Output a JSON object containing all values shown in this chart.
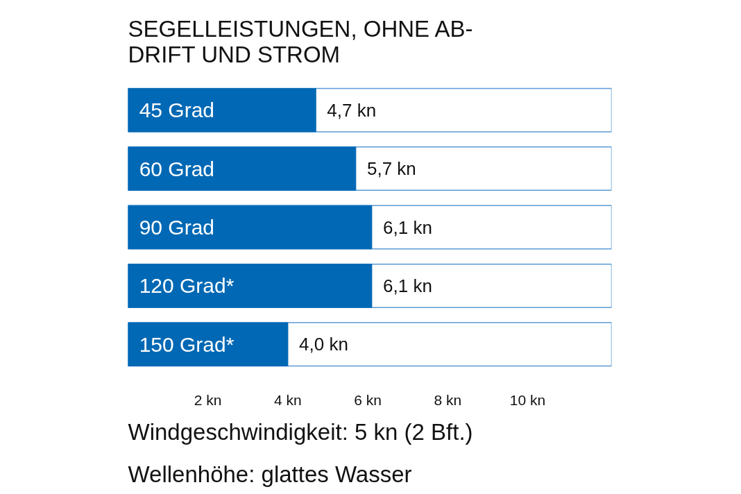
{
  "chart_data": {
    "type": "bar",
    "orientation": "horizontal",
    "title": "SEGELLEISTUNGEN, OHNE AB-\nDRIFT UND STROM",
    "categories": [
      "45 Grad",
      "60 Grad",
      "90 Grad",
      "120 Grad*",
      "150 Grad*"
    ],
    "values": [
      4.7,
      5.7,
      6.1,
      6.1,
      4.0
    ],
    "value_labels": [
      "4,7 kn",
      "5,7 kn",
      "6,1 kn",
      "6,1 kn",
      "4,0 kn"
    ],
    "color": "#0068b4",
    "xlim": [
      0,
      12.1
    ],
    "xticks": [
      {
        "value": 2,
        "label": "2 kn"
      },
      {
        "value": 4,
        "label": "4 kn"
      },
      {
        "value": 6,
        "label": "6 kn"
      },
      {
        "value": 8,
        "label": "8 kn"
      },
      {
        "value": 10,
        "label": "10 kn"
      }
    ],
    "grid": false,
    "annotations": [
      "Windgeschwindigkeit: 5 kn (2 Bft.)",
      "Wellenhöhe: glattes Wasser"
    ]
  }
}
